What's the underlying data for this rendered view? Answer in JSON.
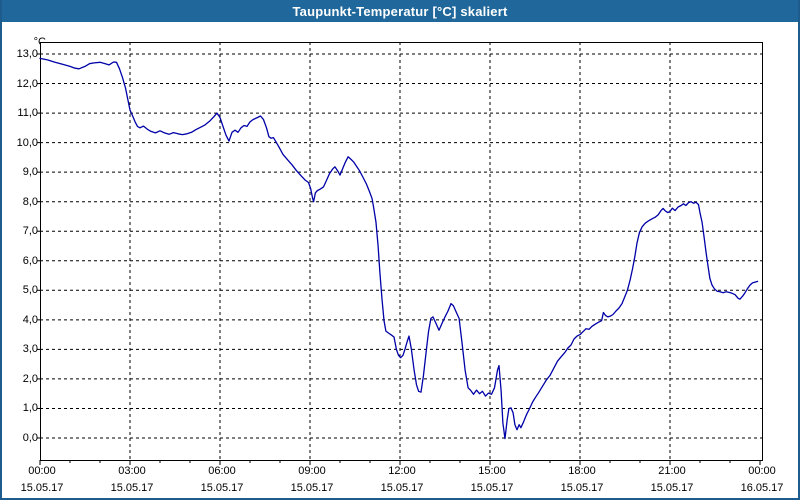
{
  "window": {
    "title": "Taupunkt-Temperatur [°C] skaliert"
  },
  "colors": {
    "titlebar_bg": "#20689b",
    "frame_border": "#1e5c8e",
    "line": "#0000a8",
    "grid": "#000000",
    "plot_bg": "#ffffff"
  },
  "chart_data": {
    "type": "line",
    "title": "Taupunkt-Temperatur [°C] skaliert",
    "xlabel": "",
    "ylabel": "°C",
    "ylim": [
      0,
      13
    ],
    "xlim_hours": [
      0,
      24
    ],
    "grid": "dashed",
    "legend": "none",
    "y_ticks": [
      "13,0",
      "12,0",
      "11,0",
      "10,0",
      "9,0",
      "8,0",
      "7,0",
      "6,0",
      "5,0",
      "4,0",
      "3,0",
      "2,0",
      "1,0",
      "0,0"
    ],
    "y_tick_values": [
      13,
      12,
      11,
      10,
      9,
      8,
      7,
      6,
      5,
      4,
      3,
      2,
      1,
      0
    ],
    "x_ticks": [
      {
        "hour": 0,
        "time": "00:00",
        "date": "15.05.17"
      },
      {
        "hour": 3,
        "time": "03:00",
        "date": "15.05.17"
      },
      {
        "hour": 6,
        "time": "06:00",
        "date": "15.05.17"
      },
      {
        "hour": 9,
        "time": "09:00",
        "date": "15.05.17"
      },
      {
        "hour": 12,
        "time": "12:00",
        "date": "15.05.17"
      },
      {
        "hour": 15,
        "time": "15:00",
        "date": "15.05.17"
      },
      {
        "hour": 18,
        "time": "18:00",
        "date": "15.05.17"
      },
      {
        "hour": 21,
        "time": "21:00",
        "date": "15.05.17"
      },
      {
        "hour": 24,
        "time": "00:00",
        "date": "16.05.17"
      }
    ],
    "minor_tick_every_hours": 1,
    "major_tick_every_hours": 3,
    "series": [
      {
        "name": "Taupunkt-Temperatur",
        "unit": "°C",
        "points": [
          [
            0.0,
            12.85
          ],
          [
            0.25,
            12.8
          ],
          [
            0.5,
            12.72
          ],
          [
            0.75,
            12.65
          ],
          [
            1.0,
            12.58
          ],
          [
            1.17,
            12.52
          ],
          [
            1.3,
            12.5
          ],
          [
            1.5,
            12.58
          ],
          [
            1.65,
            12.67
          ],
          [
            1.8,
            12.7
          ],
          [
            2.0,
            12.72
          ],
          [
            2.15,
            12.68
          ],
          [
            2.3,
            12.63
          ],
          [
            2.45,
            12.73
          ],
          [
            2.55,
            12.72
          ],
          [
            2.65,
            12.5
          ],
          [
            2.75,
            12.2
          ],
          [
            2.85,
            11.85
          ],
          [
            2.95,
            11.35
          ],
          [
            3.0,
            11.1
          ],
          [
            3.08,
            10.92
          ],
          [
            3.17,
            10.7
          ],
          [
            3.25,
            10.55
          ],
          [
            3.33,
            10.5
          ],
          [
            3.45,
            10.56
          ],
          [
            3.58,
            10.45
          ],
          [
            3.7,
            10.38
          ],
          [
            3.85,
            10.33
          ],
          [
            4.0,
            10.4
          ],
          [
            4.15,
            10.33
          ],
          [
            4.3,
            10.28
          ],
          [
            4.45,
            10.34
          ],
          [
            4.6,
            10.3
          ],
          [
            4.75,
            10.27
          ],
          [
            4.9,
            10.3
          ],
          [
            5.05,
            10.35
          ],
          [
            5.2,
            10.44
          ],
          [
            5.35,
            10.52
          ],
          [
            5.5,
            10.6
          ],
          [
            5.65,
            10.72
          ],
          [
            5.8,
            10.88
          ],
          [
            5.9,
            11.0
          ],
          [
            6.0,
            10.85
          ],
          [
            6.1,
            10.55
          ],
          [
            6.2,
            10.25
          ],
          [
            6.3,
            10.05
          ],
          [
            6.4,
            10.35
          ],
          [
            6.5,
            10.42
          ],
          [
            6.6,
            10.35
          ],
          [
            6.7,
            10.5
          ],
          [
            6.8,
            10.58
          ],
          [
            6.9,
            10.55
          ],
          [
            7.0,
            10.7
          ],
          [
            7.1,
            10.78
          ],
          [
            7.25,
            10.85
          ],
          [
            7.35,
            10.9
          ],
          [
            7.45,
            10.78
          ],
          [
            7.55,
            10.5
          ],
          [
            7.63,
            10.2
          ],
          [
            7.7,
            10.15
          ],
          [
            7.78,
            10.17
          ],
          [
            7.85,
            10.05
          ],
          [
            7.95,
            9.88
          ],
          [
            8.1,
            9.6
          ],
          [
            8.25,
            9.42
          ],
          [
            8.4,
            9.25
          ],
          [
            8.55,
            9.05
          ],
          [
            8.7,
            8.88
          ],
          [
            8.85,
            8.72
          ],
          [
            8.95,
            8.65
          ],
          [
            9.02,
            8.45
          ],
          [
            9.08,
            8.15
          ],
          [
            9.12,
            8.0
          ],
          [
            9.18,
            8.3
          ],
          [
            9.25,
            8.38
          ],
          [
            9.33,
            8.42
          ],
          [
            9.45,
            8.5
          ],
          [
            9.55,
            8.72
          ],
          [
            9.65,
            8.95
          ],
          [
            9.75,
            9.1
          ],
          [
            9.83,
            9.18
          ],
          [
            9.92,
            9.05
          ],
          [
            10.0,
            8.9
          ],
          [
            10.08,
            9.1
          ],
          [
            10.17,
            9.32
          ],
          [
            10.27,
            9.52
          ],
          [
            10.35,
            9.45
          ],
          [
            10.45,
            9.35
          ],
          [
            10.55,
            9.2
          ],
          [
            10.65,
            9.05
          ],
          [
            10.77,
            8.82
          ],
          [
            10.88,
            8.6
          ],
          [
            10.98,
            8.35
          ],
          [
            11.07,
            8.1
          ],
          [
            11.13,
            7.75
          ],
          [
            11.2,
            7.3
          ],
          [
            11.27,
            6.5
          ],
          [
            11.33,
            5.6
          ],
          [
            11.4,
            4.7
          ],
          [
            11.47,
            3.95
          ],
          [
            11.53,
            3.62
          ],
          [
            11.62,
            3.55
          ],
          [
            11.72,
            3.48
          ],
          [
            11.8,
            3.42
          ],
          [
            11.88,
            3.0
          ],
          [
            11.95,
            2.8
          ],
          [
            12.02,
            2.72
          ],
          [
            12.1,
            2.8
          ],
          [
            12.17,
            3.02
          ],
          [
            12.25,
            3.3
          ],
          [
            12.3,
            3.45
          ],
          [
            12.38,
            3.0
          ],
          [
            12.47,
            2.3
          ],
          [
            12.55,
            1.8
          ],
          [
            12.62,
            1.58
          ],
          [
            12.7,
            1.55
          ],
          [
            12.78,
            2.1
          ],
          [
            12.87,
            2.9
          ],
          [
            12.95,
            3.6
          ],
          [
            13.03,
            4.05
          ],
          [
            13.1,
            4.1
          ],
          [
            13.2,
            3.88
          ],
          [
            13.3,
            3.65
          ],
          [
            13.4,
            3.88
          ],
          [
            13.5,
            4.1
          ],
          [
            13.6,
            4.3
          ],
          [
            13.7,
            4.55
          ],
          [
            13.78,
            4.48
          ],
          [
            13.88,
            4.25
          ],
          [
            13.97,
            4.05
          ],
          [
            14.07,
            3.2
          ],
          [
            14.17,
            2.3
          ],
          [
            14.27,
            1.7
          ],
          [
            14.35,
            1.62
          ],
          [
            14.45,
            1.48
          ],
          [
            14.55,
            1.62
          ],
          [
            14.65,
            1.5
          ],
          [
            14.75,
            1.58
          ],
          [
            14.85,
            1.42
          ],
          [
            14.95,
            1.52
          ],
          [
            15.05,
            1.48
          ],
          [
            15.15,
            1.7
          ],
          [
            15.25,
            2.3
          ],
          [
            15.3,
            2.45
          ],
          [
            15.37,
            1.6
          ],
          [
            15.43,
            0.5
          ],
          [
            15.5,
            -0.02
          ],
          [
            15.57,
            0.6
          ],
          [
            15.63,
            1.0
          ],
          [
            15.7,
            1.02
          ],
          [
            15.77,
            0.85
          ],
          [
            15.83,
            0.45
          ],
          [
            15.9,
            0.28
          ],
          [
            15.97,
            0.45
          ],
          [
            16.03,
            0.35
          ],
          [
            16.12,
            0.55
          ],
          [
            16.22,
            0.8
          ],
          [
            16.32,
            1.0
          ],
          [
            16.42,
            1.22
          ],
          [
            16.52,
            1.38
          ],
          [
            16.63,
            1.55
          ],
          [
            16.75,
            1.75
          ],
          [
            16.87,
            1.95
          ],
          [
            17.0,
            2.12
          ],
          [
            17.12,
            2.35
          ],
          [
            17.25,
            2.6
          ],
          [
            17.37,
            2.75
          ],
          [
            17.5,
            2.9
          ],
          [
            17.6,
            3.05
          ],
          [
            17.7,
            3.15
          ],
          [
            17.8,
            3.35
          ],
          [
            17.9,
            3.45
          ],
          [
            18.0,
            3.5
          ],
          [
            18.1,
            3.6
          ],
          [
            18.2,
            3.7
          ],
          [
            18.3,
            3.68
          ],
          [
            18.4,
            3.78
          ],
          [
            18.5,
            3.85
          ],
          [
            18.62,
            3.92
          ],
          [
            18.72,
            3.97
          ],
          [
            18.78,
            4.25
          ],
          [
            18.85,
            4.15
          ],
          [
            18.93,
            4.1
          ],
          [
            19.02,
            4.13
          ],
          [
            19.1,
            4.18
          ],
          [
            19.2,
            4.3
          ],
          [
            19.3,
            4.4
          ],
          [
            19.4,
            4.55
          ],
          [
            19.5,
            4.8
          ],
          [
            19.58,
            5.0
          ],
          [
            19.67,
            5.35
          ],
          [
            19.75,
            5.72
          ],
          [
            19.83,
            6.15
          ],
          [
            19.9,
            6.6
          ],
          [
            19.98,
            6.95
          ],
          [
            20.07,
            7.15
          ],
          [
            20.17,
            7.27
          ],
          [
            20.28,
            7.35
          ],
          [
            20.4,
            7.42
          ],
          [
            20.5,
            7.47
          ],
          [
            20.6,
            7.55
          ],
          [
            20.7,
            7.7
          ],
          [
            20.77,
            7.77
          ],
          [
            20.85,
            7.68
          ],
          [
            20.93,
            7.63
          ],
          [
            21.0,
            7.67
          ],
          [
            21.08,
            7.78
          ],
          [
            21.17,
            7.7
          ],
          [
            21.27,
            7.82
          ],
          [
            21.37,
            7.87
          ],
          [
            21.45,
            7.93
          ],
          [
            21.53,
            7.87
          ],
          [
            21.62,
            7.97
          ],
          [
            21.7,
            8.0
          ],
          [
            21.78,
            7.95
          ],
          [
            21.87,
            7.98
          ],
          [
            21.95,
            7.9
          ],
          [
            22.0,
            7.62
          ],
          [
            22.07,
            7.3
          ],
          [
            22.13,
            6.85
          ],
          [
            22.2,
            6.3
          ],
          [
            22.27,
            5.8
          ],
          [
            22.33,
            5.4
          ],
          [
            22.4,
            5.18
          ],
          [
            22.48,
            5.05
          ],
          [
            22.57,
            4.97
          ],
          [
            22.67,
            4.95
          ],
          [
            22.77,
            4.92
          ],
          [
            22.87,
            4.95
          ],
          [
            22.97,
            4.93
          ],
          [
            23.07,
            4.9
          ],
          [
            23.17,
            4.85
          ],
          [
            23.27,
            4.73
          ],
          [
            23.33,
            4.7
          ],
          [
            23.42,
            4.8
          ],
          [
            23.5,
            4.92
          ],
          [
            23.58,
            5.05
          ],
          [
            23.67,
            5.18
          ],
          [
            23.75,
            5.25
          ],
          [
            23.85,
            5.28
          ],
          [
            23.92,
            5.3
          ]
        ]
      }
    ]
  }
}
